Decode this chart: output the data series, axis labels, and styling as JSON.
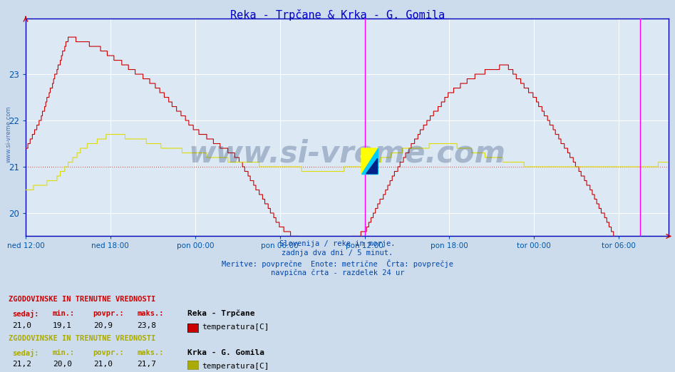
{
  "title": "Reka - Trpčane & Krka - G. Gomila",
  "title_color": "#0000cc",
  "bg_color": "#ccdcec",
  "plot_bg_color": "#dce8f4",
  "grid_color": "#ffffff",
  "grid_minor_color": "#e8d8d8",
  "axis_color": "#0000bb",
  "tick_color": "#0055aa",
  "avg_line_value": 21.0,
  "avg_line_color": "#cc3333",
  "ylim_low": 19.5,
  "ylim_high": 24.2,
  "yticks": [
    20,
    21,
    22,
    23
  ],
  "xtick_labels": [
    "ned 12:00",
    "ned 18:00",
    "pon 00:00",
    "pon 06:00",
    "pon 12:00",
    "pon 18:00",
    "tor 00:00",
    "tor 06:00"
  ],
  "n_points": 576,
  "vline_color": "#ff00ff",
  "watermark": "www.si-vreme.com",
  "watermark_color": "#1a3a6a",
  "watermark_alpha": 0.28,
  "footer_lines": [
    "Slovenija / reke in morje.",
    "zadnja dva dni / 5 minut.",
    "Meritve: povprečne  Enote: metrične  Črta: povprečje",
    "navpična črta - razdelek 24 ur"
  ],
  "footer_color": "#0044aa",
  "legend1_title": "ZGODOVINSKE IN TRENUTNE VREDNOSTI",
  "legend1_sedaj": "21,0",
  "legend1_min": "19,1",
  "legend1_povpr": "20,9",
  "legend1_maks": "23,8",
  "legend1_station": "Reka - Trpčane",
  "legend1_color": "#cc0000",
  "legend1_label": "temperatura[C]",
  "legend2_title": "ZGODOVINSKE IN TRENUTNE VREDNOSTI",
  "legend2_sedaj": "21,2",
  "legend2_min": "20,0",
  "legend2_povpr": "21,0",
  "legend2_maks": "21,7",
  "legend2_station": "Krka - G. Gomila",
  "legend2_color": "#aaaa00",
  "legend2_label": "temperatura[C]",
  "reka_color": "#cc0000",
  "krka_color": "#dddd00",
  "left_label_color": "#0044aa",
  "total_hours": 45.5,
  "tick_hours": [
    0,
    6,
    12,
    18,
    24,
    30,
    36,
    42
  ],
  "vline1_hour": 24,
  "vline2_hour": 43.5
}
